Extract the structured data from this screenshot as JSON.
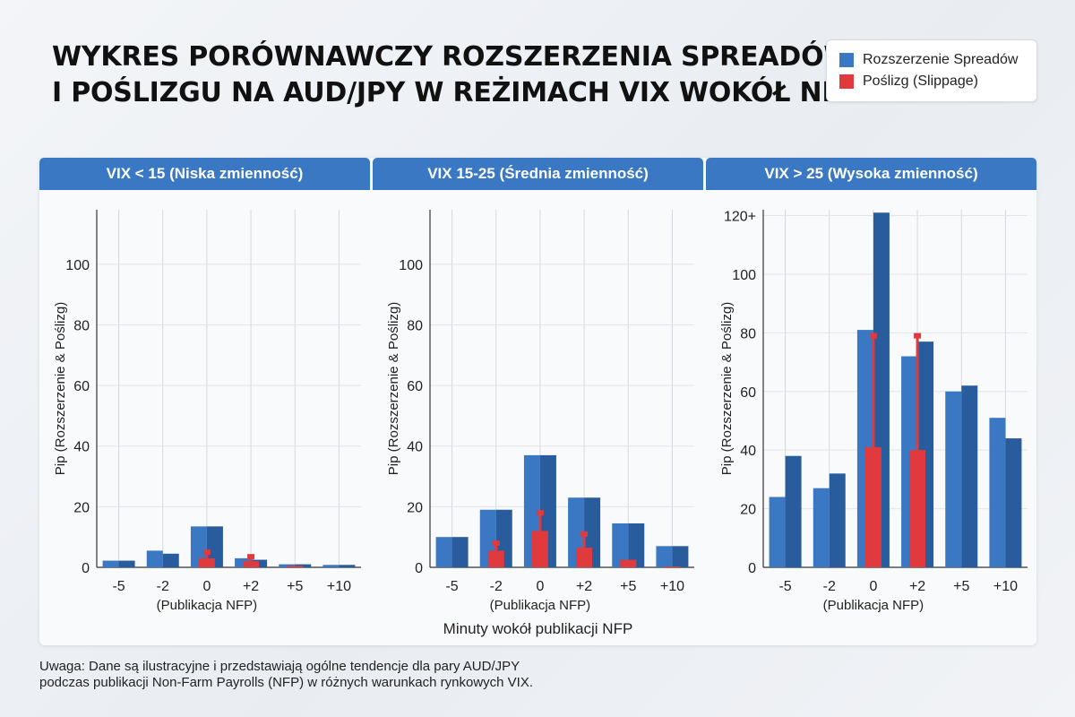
{
  "title": {
    "line1": "WYKRES PORÓWNAWCZY ROZSZERZENIA SPREADÓW",
    "line2": "I POŚLIZGU NA AUD/JPY W REŻIMACH VIX WOKÓŁ NFP"
  },
  "legend": {
    "items": [
      {
        "label": "Rozszerzenie Spreadów",
        "color": "#3a78c4"
      },
      {
        "label": "Poślizg (Slippage)",
        "color": "#e03a3e"
      }
    ]
  },
  "colors": {
    "spread_light": "#3a78c4",
    "spread_dark": "#285c9c",
    "slippage": "#e03a3e",
    "header": "#3a78c4"
  },
  "shared_xlabel": "Minuty wokół publikacji NFP",
  "footnote": {
    "line1": "Uwaga: Dane są ilustracyjne i przedstawiają ogólne tendencje dla pary AUD/JPY",
    "line2": "podczas publikacji Non-Farm Payrolls (NFP) w różnych warunkach rynkowych VIX."
  },
  "chart_data": [
    {
      "type": "bar",
      "title": "VIX < 15 (Niska zmienność)",
      "ylabel": "Pip (Rozszerzenie & Poślizg)",
      "xsublabel": "(Publikacja NFP)",
      "ylim": [
        0,
        118
      ],
      "yticks": [
        {
          "value": 0,
          "label": "0"
        },
        {
          "value": 20,
          "label": "20"
        },
        {
          "value": 40,
          "label": "40"
        },
        {
          "value": 60,
          "label": "60"
        },
        {
          "value": 80,
          "label": "80"
        },
        {
          "value": 100,
          "label": "100"
        }
      ],
      "categories": [
        "-5",
        "-2",
        "0",
        "+2",
        "+5",
        "+10"
      ],
      "series": [
        {
          "name": "Rozszerzenie Spreadów",
          "values_a": [
            2.2,
            5.5,
            13.5,
            3,
            1,
            0.8
          ],
          "values_b": [
            2.2,
            4.5,
            13.5,
            2.5,
            1,
            0.8
          ]
        },
        {
          "name": "Poślizg (Slippage)",
          "values": [
            0,
            0,
            3,
            2,
            0.5,
            0
          ],
          "error_tops": [
            null,
            null,
            5,
            3.5,
            null,
            null
          ]
        }
      ],
      "grid": true
    },
    {
      "type": "bar",
      "title": "VIX 15-25 (Średnia zmienność)",
      "ylabel": "Pip (Rozszerzenie & Poślizg)",
      "xsublabel": "(Publikacja NFP)",
      "ylim": [
        0,
        118
      ],
      "yticks": [
        {
          "value": 0,
          "label": "0"
        },
        {
          "value": 20,
          "label": "20"
        },
        {
          "value": 40,
          "label": "40"
        },
        {
          "value": 60,
          "label": "60"
        },
        {
          "value": 80,
          "label": "80"
        },
        {
          "value": 100,
          "label": "100"
        }
      ],
      "categories": [
        "-5",
        "-2",
        "0",
        "+2",
        "+5",
        "+10"
      ],
      "series": [
        {
          "name": "Rozszerzenie Spreadów",
          "values_a": [
            10,
            19,
            37,
            23,
            14.5,
            7
          ],
          "values_b": [
            10,
            19,
            37,
            23,
            14.5,
            7
          ]
        },
        {
          "name": "Poślizg (Slippage)",
          "values": [
            0,
            5.5,
            12,
            6.5,
            2.5,
            0.3
          ],
          "error_tops": [
            null,
            8,
            18,
            11,
            null,
            null
          ]
        }
      ],
      "grid": true
    },
    {
      "type": "bar",
      "title": "VIX > 25 (Wysoka zmienność)",
      "ylabel": "Pip (Rozszerzenie & Poślizg)",
      "xsublabel": "(Publikacja NFP)",
      "ylim": [
        0,
        122
      ],
      "yticks": [
        {
          "value": 0,
          "label": "0"
        },
        {
          "value": 20,
          "label": "20"
        },
        {
          "value": 40,
          "label": "40"
        },
        {
          "value": 60,
          "label": "60"
        },
        {
          "value": 80,
          "label": "80"
        },
        {
          "value": 100,
          "label": "100"
        },
        {
          "value": 120,
          "label": "120+"
        }
      ],
      "categories": [
        "-5",
        "-2",
        "0",
        "+2",
        "+5",
        "+10"
      ],
      "series": [
        {
          "name": "Rozszerzenie Spreadów",
          "values_a": [
            24,
            27,
            81,
            72,
            60,
            51
          ],
          "values_b": [
            38,
            32,
            121,
            77,
            62,
            44
          ]
        },
        {
          "name": "Poślizg (Slippage)",
          "values": [
            0,
            0,
            41,
            40,
            0,
            0
          ],
          "error_tops": [
            null,
            null,
            79,
            79,
            null,
            null
          ]
        }
      ],
      "grid": true
    }
  ]
}
